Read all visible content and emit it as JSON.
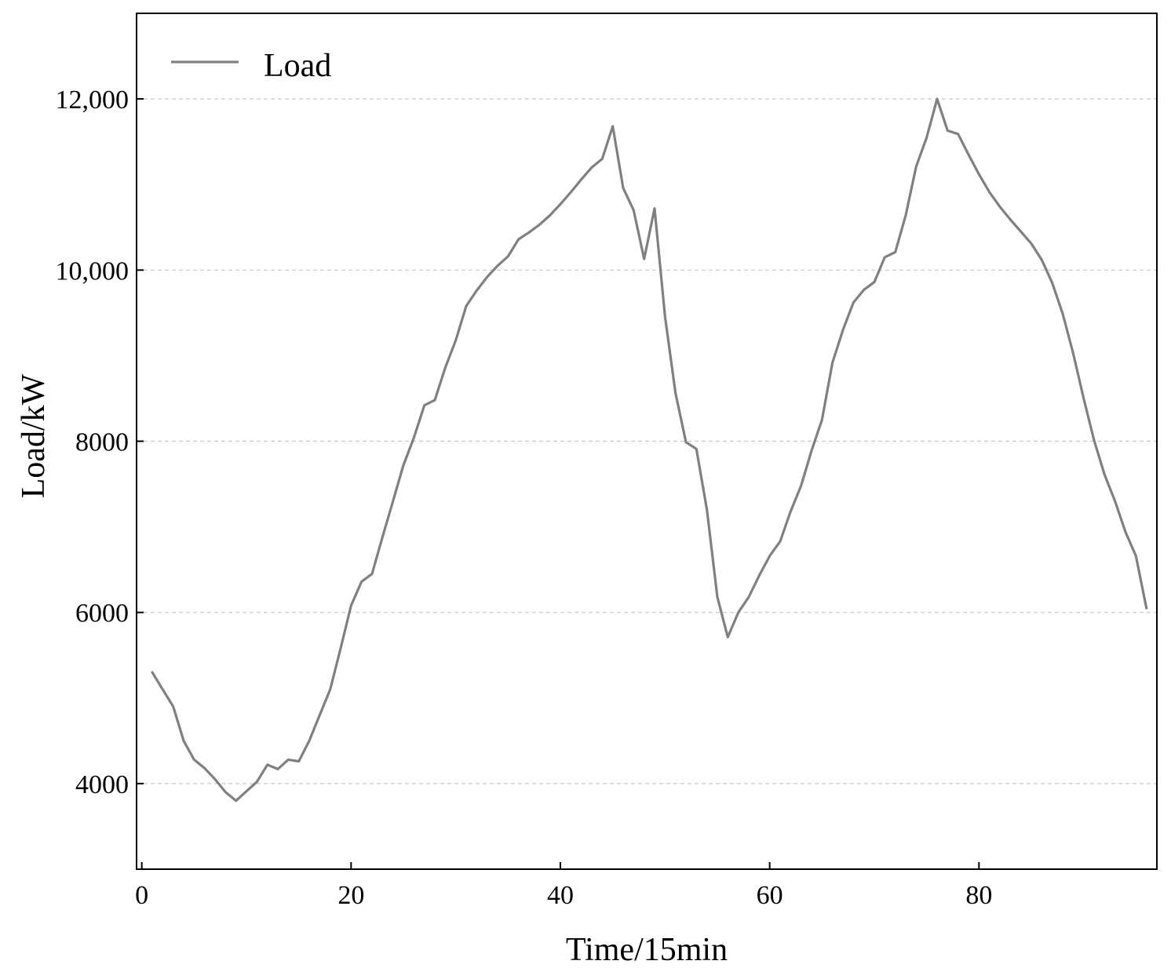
{
  "chart_data": {
    "type": "line",
    "title": "",
    "xlabel": "Time/15min",
    "ylabel": "Load/kW",
    "xlim": [
      -0.5,
      97
    ],
    "ylim": [
      3000,
      13000
    ],
    "xticks": [
      0,
      20,
      40,
      60,
      80
    ],
    "xtick_labels": [
      "0",
      "20",
      "40",
      "60",
      "80"
    ],
    "yticks": [
      4000,
      6000,
      8000,
      10000,
      12000
    ],
    "ytick_labels": [
      "4000",
      "6000",
      "8000",
      "10,000",
      "12,000"
    ],
    "grid": "horizontal dashed",
    "legend": {
      "position": "top-left",
      "entries": [
        "Load"
      ]
    },
    "colors": {
      "line": "#808080",
      "grid": "#c8c8c8",
      "axis": "#000000"
    },
    "series": [
      {
        "name": "Load",
        "x": [
          1,
          2,
          3,
          4,
          5,
          6,
          7,
          8,
          9,
          10,
          11,
          12,
          13,
          14,
          15,
          16,
          17,
          18,
          19,
          20,
          21,
          22,
          23,
          24,
          25,
          26,
          27,
          28,
          29,
          30,
          31,
          32,
          33,
          34,
          35,
          36,
          37,
          38,
          39,
          40,
          41,
          42,
          43,
          44,
          45,
          46,
          47,
          48,
          49,
          50,
          51,
          52,
          53,
          54,
          55,
          56,
          57,
          58,
          59,
          60,
          61,
          62,
          63,
          64,
          65,
          66,
          67,
          68,
          69,
          70,
          71,
          72,
          73,
          74,
          75,
          76,
          77,
          78,
          79,
          80,
          81,
          82,
          83,
          84,
          85,
          86,
          87,
          88,
          89,
          90,
          91,
          92,
          93,
          94,
          95,
          96
        ],
        "values": [
          5300,
          5100,
          4900,
          4500,
          4280,
          4180,
          4050,
          3900,
          3800,
          3910,
          4020,
          4220,
          4170,
          4280,
          4260,
          4500,
          4800,
          5100,
          5580,
          6080,
          6360,
          6450,
          6880,
          7300,
          7720,
          8040,
          8420,
          8480,
          8860,
          9180,
          9580,
          9760,
          9920,
          10050,
          10160,
          10360,
          10440,
          10530,
          10640,
          10770,
          10910,
          11060,
          11200,
          11300,
          11680,
          10960,
          10700,
          10130,
          10720,
          9460,
          8560,
          7990,
          7910,
          7200,
          6180,
          5710,
          6000,
          6180,
          6430,
          6660,
          6830,
          7180,
          7480,
          7890,
          8250,
          8920,
          9300,
          9620,
          9770,
          9860,
          10150,
          10210,
          10640,
          11210,
          11550,
          12000,
          11630,
          11590,
          11350,
          11120,
          10910,
          10740,
          10590,
          10450,
          10310,
          10120,
          9850,
          9490,
          9030,
          8500,
          8010,
          7610,
          7300,
          6940,
          6660,
          6050
        ]
      }
    ]
  }
}
